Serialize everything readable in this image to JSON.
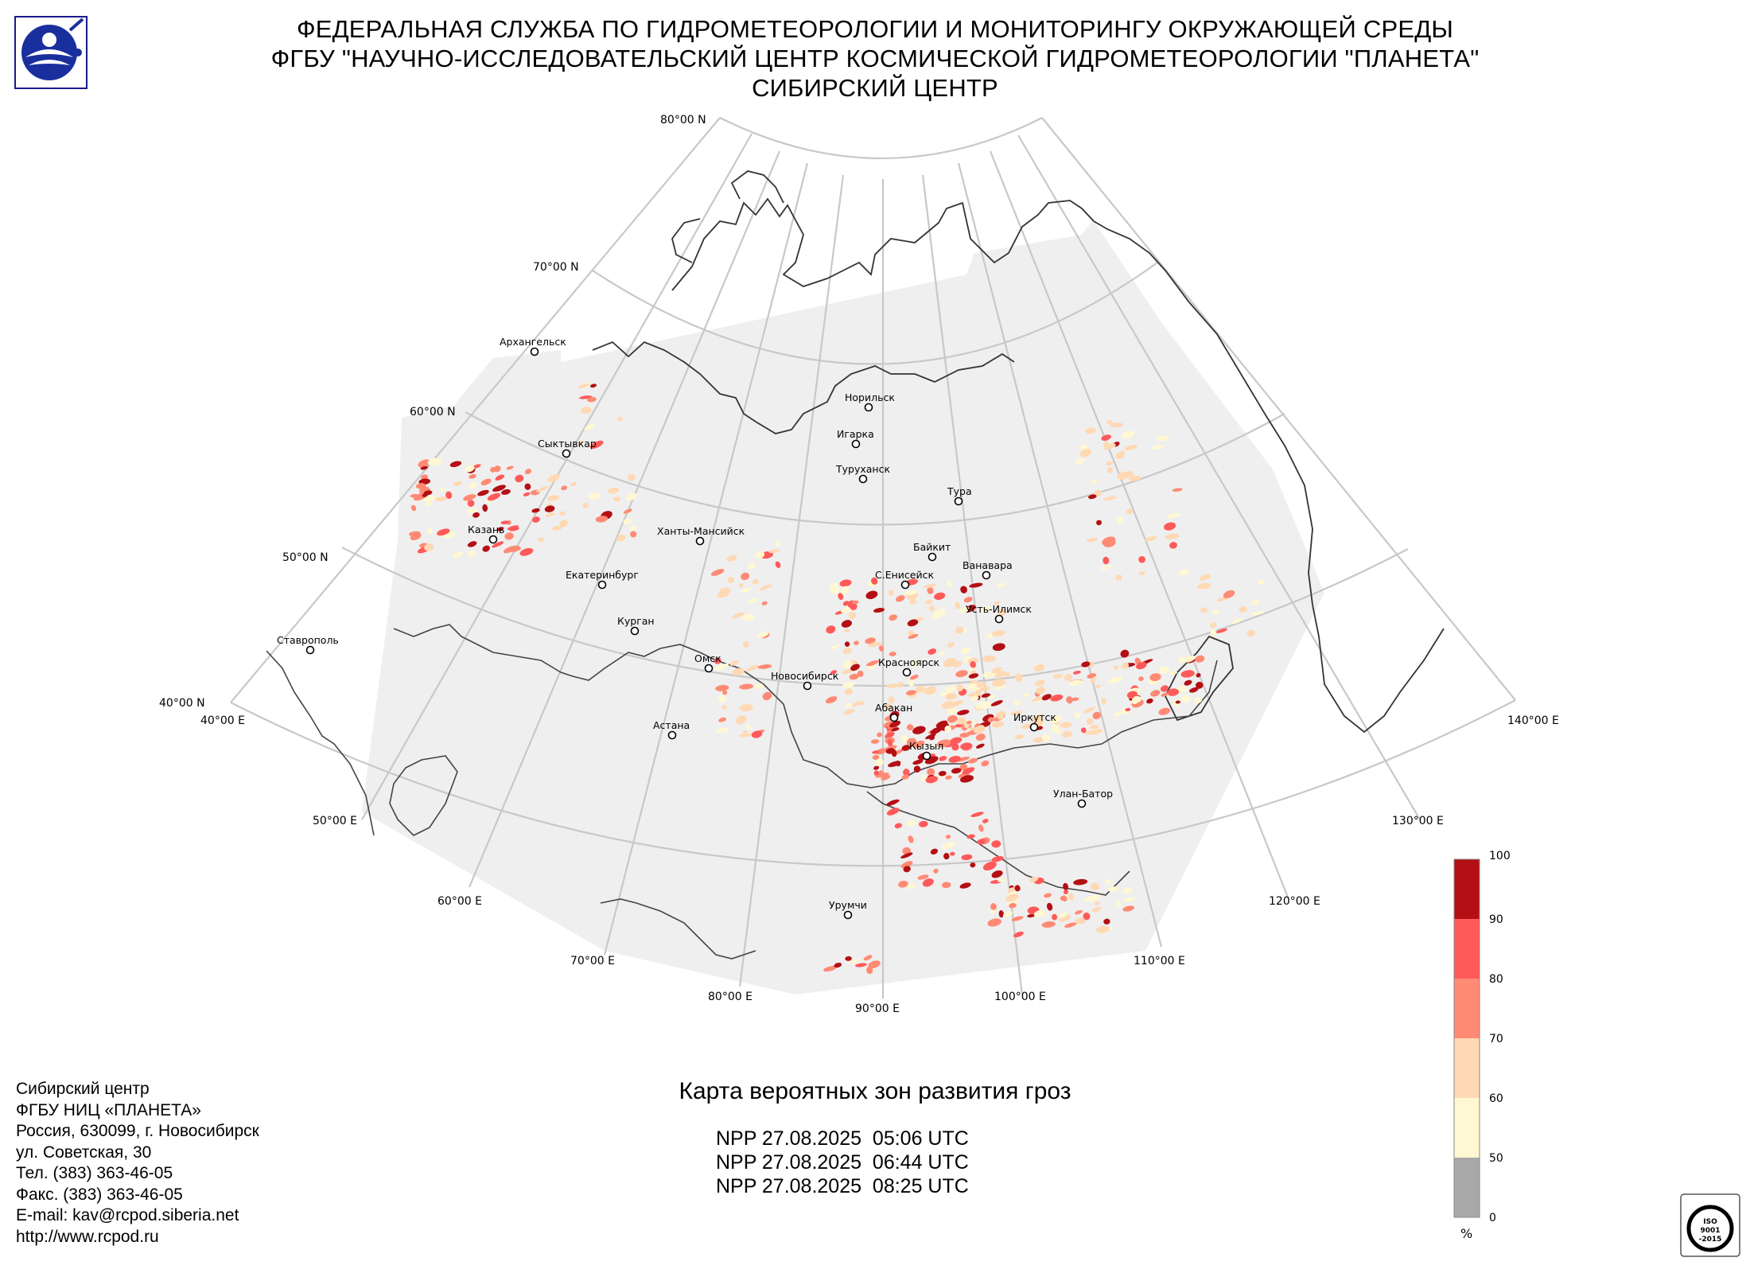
{
  "header": {
    "line1": "ФЕДЕРАЛЬНАЯ СЛУЖБА ПО ГИДРОМЕТЕОРОЛОГИИ И МОНИТОРИНГУ ОКРУЖАЮЩЕЙ СРЕДЫ",
    "line2": "ФГБУ \"НАУЧНО-ИССЛЕДОВАТЕЛЬСКИЙ ЦЕНТР КОСМИЧЕСКОЙ ГИДРОМЕТЕОРОЛОГИИ \"ПЛАНЕТА\"",
    "line3": "СИБИРСКИЙ ЦЕНТР"
  },
  "map": {
    "title": "Карта вероятных зон развития гроз",
    "passes": [
      "NPP 27.08.2025  05:06 UTC",
      "NPP 27.08.2025  06:44 UTC",
      "NPP 27.08.2025  08:25 UTC"
    ],
    "lat_labels": [
      "80°00 N",
      "70°00 N",
      "60°00 N",
      "50°00 N",
      "40°00 N"
    ],
    "lon_labels": [
      "40°00 E",
      "50°00 E",
      "60°00 E",
      "70°00 E",
      "80°00 E",
      "90°00 E",
      "100°00 E",
      "110°00 E",
      "120°00 E",
      "130°00 E",
      "140°00 E"
    ],
    "cities": [
      "Архангельск",
      "Сыктывкар",
      "Норильск",
      "Игарка",
      "Туруханск",
      "Тура",
      "Ханты-Мансийск",
      "Казань",
      "Байкит",
      "Ванавара",
      "С.Енисейск",
      "Екатеринбург",
      "Усть-Илимск",
      "Курган",
      "Ставрополь",
      "Омск",
      "Красноярск",
      "Новосибирск",
      "Абакан",
      "Иркутск",
      "Астана",
      "Кызыл",
      "Улан-Батор",
      "Урумчи"
    ]
  },
  "legend": {
    "unit": "%",
    "ticks": [
      "100",
      "90",
      "80",
      "70",
      "60",
      "50",
      "0"
    ],
    "colors": [
      "#b40f14",
      "#ff5a5a",
      "#ff8a74",
      "#ffd9b4",
      "#fff8d2",
      "#a8a8a8"
    ]
  },
  "contacts": [
    "Сибирский центр",
    "ФГБУ НИЦ «ПЛАНЕТА»",
    "Россия, 630099, г. Новосибирск",
    "ул. Советская, 30",
    "Тел. (383) 363-46-05",
    "Факс. (383) 363-46-05",
    "E-mail: kav@rcpod.siberia.net",
    "http://www.rcpod.ru"
  ],
  "logos": {
    "agency_logo": "roshydromet-logo",
    "iso": [
      "ISO",
      "9001",
      "-2015"
    ]
  }
}
